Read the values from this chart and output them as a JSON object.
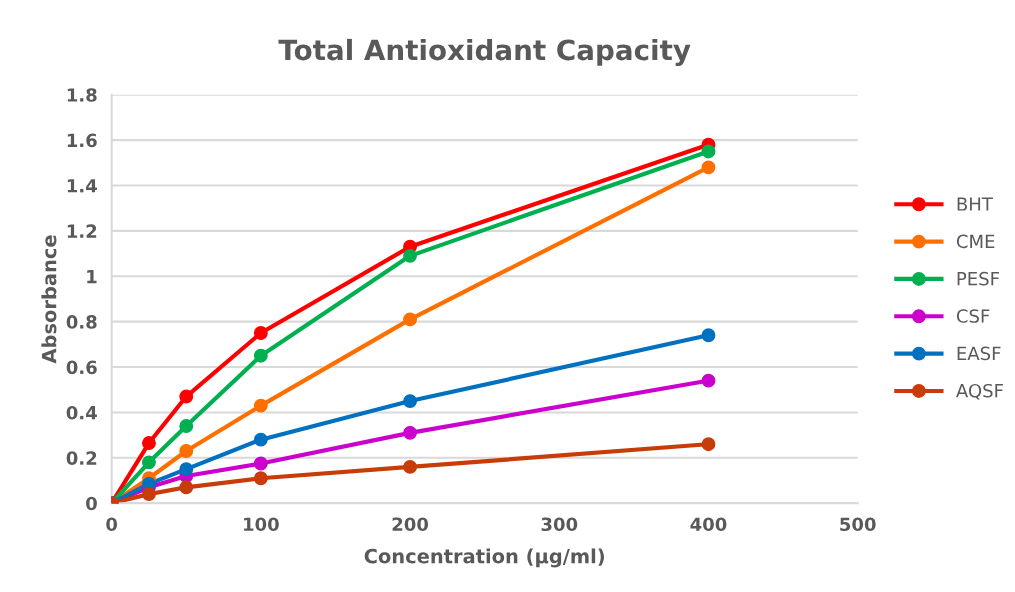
{
  "chart_data": {
    "type": "line",
    "title": "Total Antioxidant Capacity",
    "xlabel": "Concentration (µg/ml)",
    "ylabel": "Absorbance",
    "x": [
      0,
      25,
      50,
      100,
      200,
      400
    ],
    "series": [
      {
        "name": "BHT",
        "color": "#ff0000",
        "values": [
          0,
          0.265,
          0.47,
          0.75,
          1.13,
          1.58
        ]
      },
      {
        "name": "CME",
        "color": "#ff6f00",
        "values": [
          0,
          0.11,
          0.23,
          0.43,
          0.81,
          1.48
        ]
      },
      {
        "name": "PESF",
        "color": "#00b050",
        "values": [
          0,
          0.18,
          0.34,
          0.65,
          1.09,
          1.55
        ]
      },
      {
        "name": "CSF",
        "color": "#cc00cc",
        "values": [
          0,
          0.07,
          0.12,
          0.175,
          0.31,
          0.54
        ]
      },
      {
        "name": "EASF",
        "color": "#0070c0",
        "values": [
          0,
          0.085,
          0.15,
          0.28,
          0.45,
          0.74
        ]
      },
      {
        "name": "AQSF",
        "color": "#c83c0a",
        "values": [
          0,
          0.04,
          0.07,
          0.11,
          0.16,
          0.26
        ]
      }
    ],
    "xlim": [
      0,
      500
    ],
    "xticks": [
      0,
      100,
      200,
      300,
      400,
      500
    ],
    "ylim": [
      0,
      1.8
    ],
    "yticks": [
      0,
      0.2,
      0.4,
      0.6,
      0.8,
      1,
      1.2,
      1.4,
      1.6,
      1.8
    ],
    "grid": "y",
    "legend": "right",
    "marker": "circle",
    "line_style": "solid"
  }
}
